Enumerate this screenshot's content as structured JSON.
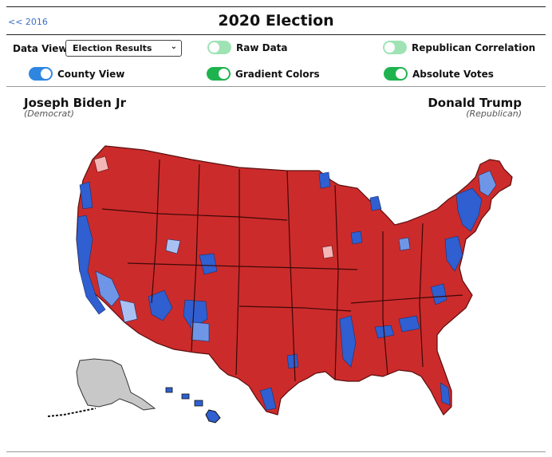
{
  "header": {
    "back_link": "<< 2016",
    "title": "2020 Election"
  },
  "controls": {
    "data_view_label": "Data View:",
    "data_view_selected": "Election Results",
    "toggles": [
      {
        "label": "Raw Data",
        "on": false
      },
      {
        "label": "Republican Correlation",
        "on": false
      },
      {
        "label": "County View",
        "on": true
      },
      {
        "label": "Gradient Colors",
        "on": true
      },
      {
        "label": "Absolute Votes",
        "on": true
      }
    ]
  },
  "candidates": {
    "democrat": {
      "name": "Joseph Biden Jr",
      "party": "(Democrat)"
    },
    "republican": {
      "name": "Donald Trump",
      "party": "(Republican)"
    }
  },
  "colors": {
    "republican": "#cc2b2b",
    "republican_light": "#f4b6b6",
    "democrat": "#2f5fd0",
    "democrat_light": "#a9c1f2",
    "no_data": "#c8c8c8",
    "toggle_on_blue": "#2f86e0",
    "toggle_on_green": "#1fb34f",
    "toggle_off": "#9fe3b5",
    "link": "#3a6fc6"
  }
}
